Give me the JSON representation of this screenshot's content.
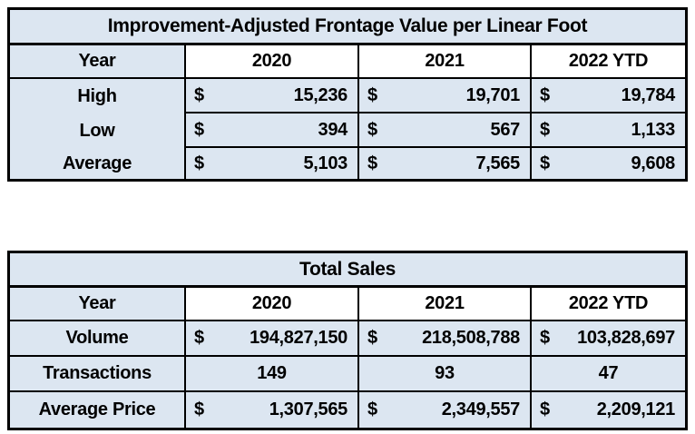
{
  "colors": {
    "page_bg": "#ffffff",
    "cell_bg": "#dce6f1",
    "year_header_bg": "#ffffff",
    "border": "#000000",
    "text": "#000000"
  },
  "frontage_table": {
    "title": "Improvement-Adjusted Frontage Value per Linear Foot",
    "header": {
      "year": "Year",
      "y2020": "2020",
      "y2021": "2021",
      "y2022": "2022 YTD"
    },
    "rows": {
      "high": {
        "label": "High",
        "v2020": {
          "cur": "$",
          "amt": "15,236"
        },
        "v2021": {
          "cur": "$",
          "amt": "19,701"
        },
        "v2022": {
          "cur": "$",
          "amt": "19,784"
        }
      },
      "low": {
        "label": "Low",
        "v2020": {
          "cur": "$",
          "amt": "394"
        },
        "v2021": {
          "cur": "$",
          "amt": "567"
        },
        "v2022": {
          "cur": "$",
          "amt": "1,133"
        }
      },
      "average": {
        "label": "Average",
        "v2020": {
          "cur": "$",
          "amt": "5,103"
        },
        "v2021": {
          "cur": "$",
          "amt": "7,565"
        },
        "v2022": {
          "cur": "$",
          "amt": "9,608"
        }
      }
    }
  },
  "sales_table": {
    "title": "Total Sales",
    "header": {
      "year": "Year",
      "y2020": "2020",
      "y2021": "2021",
      "y2022": "2022 YTD"
    },
    "rows": {
      "volume": {
        "label": "Volume",
        "v2020": {
          "cur": "$",
          "amt": "194,827,150"
        },
        "v2021": {
          "cur": "$",
          "amt": "218,508,788"
        },
        "v2022": {
          "cur": "$",
          "amt": "103,828,697"
        }
      },
      "transactions": {
        "label": "Transactions",
        "v2020": {
          "val": "149"
        },
        "v2021": {
          "val": "93"
        },
        "v2022": {
          "val": "47"
        }
      },
      "average_price": {
        "label": "Average Price",
        "v2020": {
          "cur": "$",
          "amt": "1,307,565"
        },
        "v2021": {
          "cur": "$",
          "amt": "2,349,557"
        },
        "v2022": {
          "cur": "$",
          "amt": "2,209,121"
        }
      }
    }
  },
  "chart_data": [
    {
      "type": "table",
      "title": "Improvement-Adjusted Frontage Value per Linear Foot",
      "columns": [
        "Year",
        "2020",
        "2021",
        "2022 YTD"
      ],
      "rows": [
        [
          "High",
          15236,
          19701,
          19784
        ],
        [
          "Low",
          394,
          567,
          1133
        ],
        [
          "Average",
          5103,
          7565,
          9608
        ]
      ],
      "units": "USD"
    },
    {
      "type": "table",
      "title": "Total Sales",
      "columns": [
        "Year",
        "2020",
        "2021",
        "2022 YTD"
      ],
      "rows": [
        [
          "Volume",
          194827150,
          218508788,
          103828697
        ],
        [
          "Transactions",
          149,
          93,
          47
        ],
        [
          "Average Price",
          1307565,
          2349557,
          2209121
        ]
      ],
      "units": "USD"
    }
  ]
}
